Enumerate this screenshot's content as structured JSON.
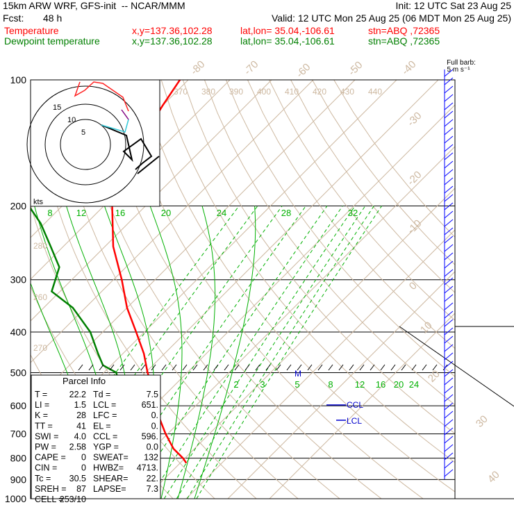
{
  "header": {
    "model": "15km ARW WRF, GFS-init  -- NCAR/MMM",
    "init": "Init: 12 UTC Sat 23 Aug 25",
    "fcst_label": "Fcst:",
    "fcst_value": "48 h",
    "valid": "Valid: 12 UTC Mon 25 Aug 25 (06 MDT Mon 25 Aug 25)",
    "temp_line": {
      "name": "Temperature",
      "xy": "x,y=137.36,102.28",
      "latlon": "lat,lon= 35.04,-106.61",
      "stn": "stn=ABQ ,72365"
    },
    "dew_line": {
      "name": "Dewpoint temperature",
      "xy": "x,y=137.36,102.28",
      "latlon": "lat,lon= 35.04,-106.61",
      "stn": "stn=ABQ ,72365"
    },
    "barb_title_1": "Full barb:",
    "barb_title_2": "5 m s⁻¹"
  },
  "colors": {
    "temperature": "#ff0000",
    "dewpoint": "#007f00",
    "hodo": "#000000",
    "barb": "#0000ff",
    "isotherm": "#cdb8a0",
    "mixratio": "#00b000"
  },
  "chart_data": {
    "type": "line",
    "pressure_levels": [
      100,
      200,
      300,
      400,
      500,
      600,
      700,
      800,
      900,
      1000
    ],
    "pressure_labels": [
      "100",
      "200",
      "300",
      "400",
      "500",
      "600",
      "700",
      "800",
      "900",
      "1000"
    ],
    "isotherm_labels_top": [
      "-80",
      "-70",
      "-60",
      "-50",
      "-40"
    ],
    "isotherm_labels_right": [
      "-30",
      "-20",
      "-10",
      "0",
      "10",
      "20",
      "30",
      "40"
    ],
    "theta_labels_top": [
      "370",
      "380",
      "390",
      "400",
      "410",
      "420",
      "430",
      "440"
    ],
    "theta_labels_left": [
      "280",
      "270",
      "260"
    ],
    "mixing_ratio_labels_upper": [
      "8",
      "12",
      "16",
      "20",
      "24",
      "28",
      "32"
    ],
    "mixing_ratio_labels_lower": [
      "2",
      "3",
      "5",
      "8",
      "12",
      "16",
      "20",
      "24"
    ],
    "series": [
      {
        "name": "Temperature",
        "p": [
          822,
          800,
          760,
          700,
          650,
          600,
          550,
          500,
          450,
          400,
          350,
          300,
          250,
          200,
          170,
          150,
          130,
          115,
          100
        ],
        "t": [
          21.5,
          19.5,
          15.0,
          9.5,
          5.0,
          0.5,
          -4.0,
          -9.5,
          -15.0,
          -22.0,
          -30.0,
          -38.0,
          -48.0,
          -58.0,
          -62.0,
          -66.0,
          -68.0,
          -70.0,
          -72.0
        ]
      },
      {
        "name": "Dewpoint temperature",
        "p": [
          822,
          800,
          750,
          700,
          650,
          600,
          550,
          500,
          480,
          450,
          400,
          350,
          320,
          280,
          250,
          220,
          200,
          150,
          130,
          100
        ],
        "t": [
          3.0,
          3.0,
          3.0,
          1.5,
          -2.0,
          -7.0,
          -12.0,
          -17.0,
          -22.0,
          -26.0,
          -33.0,
          -43.0,
          -52.0,
          -56.0,
          -63.0,
          -71.0,
          -78.0,
          -87.0,
          -91.0,
          -95.0
        ]
      }
    ],
    "annotations": [
      "CCL",
      "LCL",
      "M"
    ],
    "hodograph": {
      "units": "kts",
      "ring_labels": [
        "5",
        "10",
        "15"
      ]
    }
  },
  "parcel_info": {
    "title": "Parcel Info",
    "rows": [
      [
        "T  =  ",
        "22.2",
        "Td =  ",
        "7.5"
      ],
      [
        "LI =  ",
        "1.5",
        "LCL =",
        "651."
      ],
      [
        "K  =  ",
        "28",
        "LFC =",
        "0."
      ],
      [
        "TT =  ",
        "41",
        "EL  =",
        "0."
      ],
      [
        "SWI =",
        "4.0",
        "CCL =",
        "596."
      ],
      [
        "PW =  ",
        "2.58",
        "YGP =",
        "0.0"
      ],
      [
        "CAPE =",
        "0",
        "SWEAT=",
        "132"
      ],
      [
        "CIN =",
        "0",
        "HWBZ=",
        "4713."
      ],
      [
        "Tc =",
        "30.5",
        "SHEAR=",
        "22."
      ],
      [
        "SREH =",
        "87",
        "LAPSE=",
        "7.3"
      ],
      [
        "CELL =",
        "253/10",
        "",
        ""
      ]
    ]
  }
}
